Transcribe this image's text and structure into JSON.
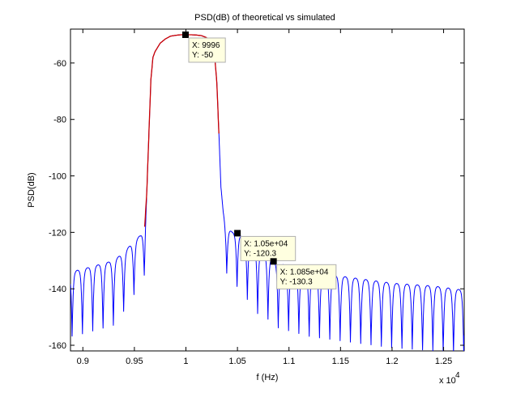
{
  "chart_data": {
    "type": "line",
    "title": "PSD(dB) of theoretical vs simulated",
    "xlabel": "f (Hz)",
    "ylabel": "PSD(dB)",
    "x_multiplier_label": "x 10",
    "x_multiplier_exp": "4",
    "xlim": [
      8880,
      12700
    ],
    "ylim": [
      -162,
      -48
    ],
    "x_ticks": [
      9000,
      9500,
      10000,
      10500,
      11000,
      11500,
      12000,
      12500
    ],
    "x_tick_labels": [
      "0.9",
      "0.95",
      "1",
      "1.05",
      "1.1",
      "1.15",
      "1.2",
      "1.25"
    ],
    "y_ticks": [
      -60,
      -80,
      -100,
      -120,
      -140,
      -160
    ],
    "y_tick_labels": [
      "-60",
      "-80",
      "-100",
      "-120",
      "-140",
      "-160"
    ],
    "grid": false,
    "colors": {
      "simulated": "#0000ff",
      "theoretical": "#cc0000",
      "axes": "#000000",
      "tip_bg": "#ffffe0",
      "tip_border": "#b0b0b0"
    },
    "series": [
      {
        "color": "#0000ff",
        "x": [
          8880,
          9000,
          9100,
          9200,
          9300,
          9400,
          9500,
          9560,
          9600,
          9620,
          9640,
          9660,
          9680,
          9700,
          9750,
          9800,
          9850,
          9900,
          9950,
          9996,
          10050,
          10100,
          10150,
          10200,
          10250,
          10280,
          10300,
          10320,
          10340,
          10360,
          10380,
          10400,
          10450,
          10500,
          10600,
          10700,
          10800,
          10850,
          10900,
          11000,
          11200,
          11400,
          11600,
          11800,
          12000,
          12200,
          12400,
          12600,
          12700
        ],
        "y": [
          -134,
          -133,
          -132,
          -131,
          -130,
          -127,
          -123,
          -121,
          -118,
          -106,
          -86,
          -66,
          -58,
          -56,
          -53,
          -51.5,
          -50.5,
          -50.2,
          -50,
          -50,
          -50,
          -50.1,
          -50.3,
          -51,
          -53,
          -58,
          -67,
          -85,
          -104,
          -112,
          -116,
          -118,
          -120,
          -120.3,
          -123,
          -126,
          -128,
          -130.3,
          -131,
          -132,
          -134,
          -135,
          -136,
          -137,
          -138,
          -138.5,
          -139,
          -140,
          -140.5
        ]
      },
      {
        "color": "#cc0000",
        "x": [
          9600,
          9620,
          9640,
          9660,
          9680,
          9700,
          9750,
          9800,
          9850,
          9900,
          9950,
          10000,
          10050,
          10100,
          10150,
          10200,
          10250,
          10280,
          10300,
          10320
        ],
        "y": [
          -118,
          -106,
          -86,
          -66,
          -58,
          -56,
          -53,
          -51.5,
          -50.5,
          -50.2,
          -50,
          -50,
          -50,
          -50.1,
          -50.3,
          -51,
          -53,
          -58,
          -67,
          -85
        ]
      }
    ],
    "datatips": [
      {
        "x": 9996,
        "y": -50,
        "lines": [
          "X: 9996",
          "Y: -50"
        ]
      },
      {
        "x": 10500,
        "y": -120.3,
        "lines": [
          "X: 1.05e+04",
          "Y: -120.3"
        ]
      },
      {
        "x": 10850,
        "y": -130.3,
        "lines": [
          "X: 1.085e+04",
          "Y: -130.3"
        ]
      }
    ]
  }
}
